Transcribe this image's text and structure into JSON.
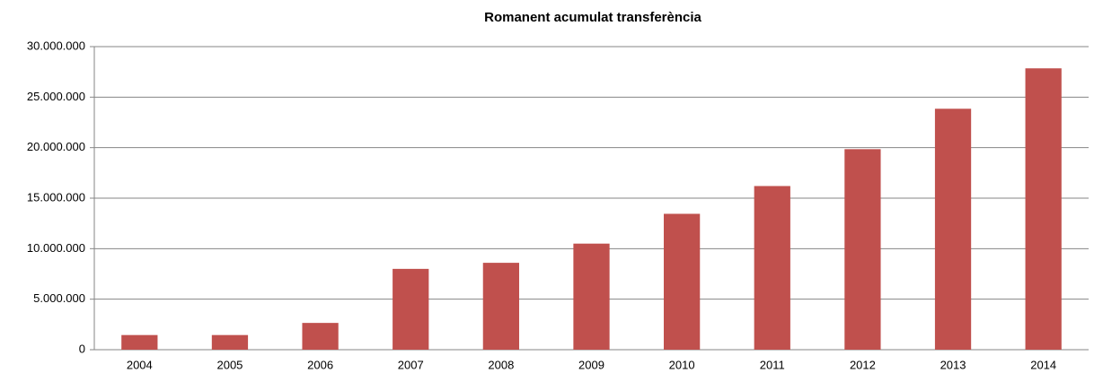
{
  "chart_data": {
    "type": "bar",
    "title": "Romanent acumulat transferència",
    "categories": [
      "2004",
      "2005",
      "2006",
      "2007",
      "2008",
      "2009",
      "2010",
      "2011",
      "2012",
      "2013",
      "2014"
    ],
    "values": [
      1450000,
      1450000,
      2650000,
      8000000,
      8600000,
      10500000,
      13450000,
      16200000,
      19850000,
      23850000,
      27850000
    ],
    "color": "#c0504d",
    "ylim": [
      0,
      30000000
    ],
    "yticks": [
      0,
      {
        "value": 5000000,
        "label": "5.000.000"
      },
      {
        "value": 10000000,
        "label": "10.000.000"
      },
      {
        "value": 15000000,
        "label": "15.000.000"
      },
      {
        "value": 20000000,
        "label": "20.000.000"
      },
      {
        "value": 25000000,
        "label": "25.000.000"
      },
      {
        "value": 30000000,
        "label": "30.000.000"
      }
    ],
    "grid": true
  }
}
